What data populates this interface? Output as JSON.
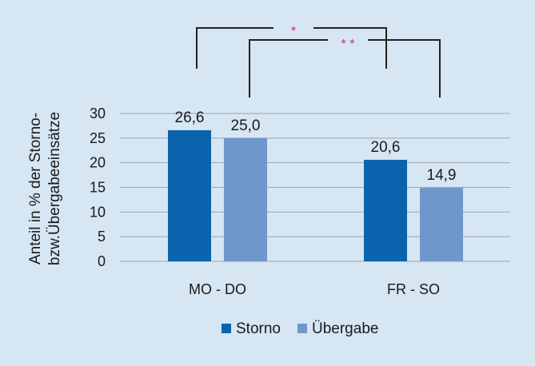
{
  "chart_data": {
    "type": "bar",
    "categories": [
      "MO - DO",
      "FR - SO"
    ],
    "series": [
      {
        "name": "Storno",
        "values": [
          26.6,
          20.6
        ],
        "labels": [
          "26,6",
          "20,6"
        ],
        "color": "#0b63ad"
      },
      {
        "name": "Übergabe",
        "values": [
          25.0,
          14.9
        ],
        "labels": [
          "25,0",
          "14,9"
        ],
        "color": "#6f97cb"
      }
    ],
    "ylabel": [
      "Anteil in % der Storno-",
      "bzw.Übergabeeinsätze"
    ],
    "ylim": [
      0,
      30
    ],
    "yticks": [
      0,
      5,
      10,
      15,
      20,
      25,
      30
    ],
    "grid": true,
    "legend": "bottom",
    "significance": [
      {
        "label": "*",
        "from": "Storno MO - DO",
        "to": "Storno FR - SO"
      },
      {
        "label": "* *",
        "from": "Übergabe MO - DO",
        "to": "Übergabe FR - SO"
      }
    ]
  },
  "colors": {
    "background": "#d6e6f2",
    "grid": "#9aa6b0",
    "bracket": "#222222",
    "significance": "#c0336a"
  }
}
